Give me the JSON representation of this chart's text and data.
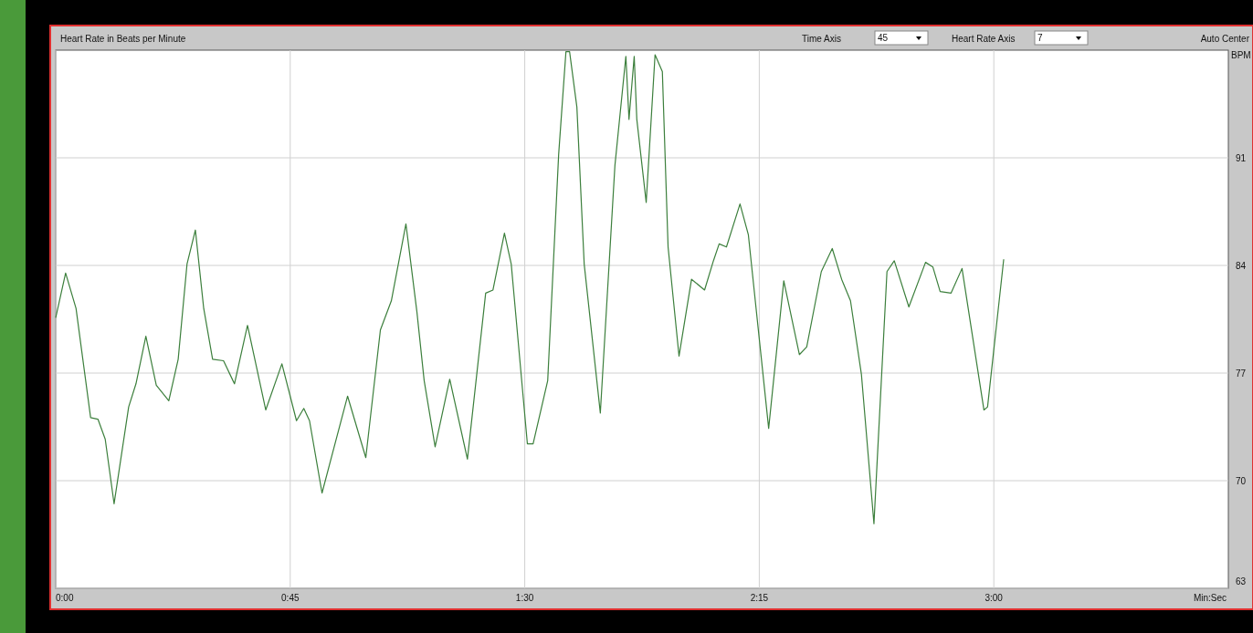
{
  "chart_data": {
    "type": "line",
    "title": "Heart Rate in Beats per Minute",
    "xlabel": "Min:Sec",
    "ylabel": "BPM",
    "annotations": [
      "Time Axis",
      "45",
      "Heart Rate Axis",
      "7",
      "Auto Center"
    ],
    "xlim": [
      0,
      225
    ],
    "xticks": [
      {
        "value": 0,
        "label": "0:00"
      },
      {
        "value": 45,
        "label": "0:45"
      },
      {
        "value": 90,
        "label": "1:30"
      },
      {
        "value": 135,
        "label": "2:15"
      },
      {
        "value": 180,
        "label": "3:00"
      }
    ],
    "ylim": [
      63,
      98
    ],
    "yticks": [
      63,
      70,
      77,
      84,
      91
    ],
    "grid": true,
    "marker": "none",
    "line_style": "solid",
    "series": [
      {
        "color": "#3c7f3c",
        "x": [
          0,
          1.9,
          3.9,
          6.7,
          8.1,
          9.5,
          11.2,
          14.0,
          15.4,
          17.3,
          19.3,
          21.7,
          23.5,
          25.2,
          26.8,
          28.4,
          30.1,
          32.2,
          34.3,
          36.8,
          40.3,
          43.4,
          46.2,
          47.6,
          48.7,
          51.1,
          56.0,
          59.5,
          62.3,
          64.4,
          67.2,
          69.3,
          70.7,
          72.8,
          75.6,
          79.0,
          82.5,
          83.9,
          86.1,
          87.4,
          90.5,
          91.6,
          94.4,
          96.5,
          97.9,
          98.6,
          100.0,
          101.4,
          104.5,
          107.3,
          109.4,
          110.0,
          111.0,
          111.5,
          113.3,
          115.0,
          116.4,
          117.5,
          119.6,
          122.0,
          124.5,
          126.2,
          127.3,
          128.7,
          131.3,
          132.9,
          136.8,
          139.7,
          142.7,
          144.1,
          146.9,
          149.0,
          150.8,
          152.5,
          154.6,
          157.0,
          159.5,
          160.9,
          163.7,
          166.9,
          168.3,
          169.7,
          171.8,
          173.9,
          178.1,
          178.8,
          181.9
        ],
        "values": [
          80.6,
          83.5,
          81.2,
          74.1,
          74.0,
          72.7,
          68.5,
          74.8,
          76.3,
          79.4,
          76.2,
          75.2,
          77.9,
          84.1,
          86.3,
          81.2,
          77.9,
          77.8,
          76.3,
          80.1,
          74.6,
          77.6,
          73.9,
          74.7,
          73.9,
          69.2,
          75.5,
          71.5,
          79.8,
          81.7,
          86.7,
          81.0,
          76.5,
          72.2,
          76.6,
          71.4,
          82.2,
          82.4,
          86.1,
          84.1,
          72.4,
          72.4,
          76.5,
          91.2,
          97.9,
          97.9,
          94.3,
          84.1,
          74.4,
          90.5,
          97.6,
          93.5,
          97.6,
          93.5,
          88.1,
          97.7,
          96.6,
          85.2,
          78.1,
          83.1,
          82.4,
          84.3,
          85.4,
          85.2,
          88.0,
          86.0,
          73.4,
          83.0,
          78.2,
          78.7,
          83.6,
          85.1,
          83.1,
          81.7,
          76.9,
          67.2,
          83.6,
          84.3,
          81.3,
          84.2,
          83.9,
          82.3,
          82.2,
          83.8,
          74.6,
          74.8,
          84.4
        ]
      }
    ]
  }
}
